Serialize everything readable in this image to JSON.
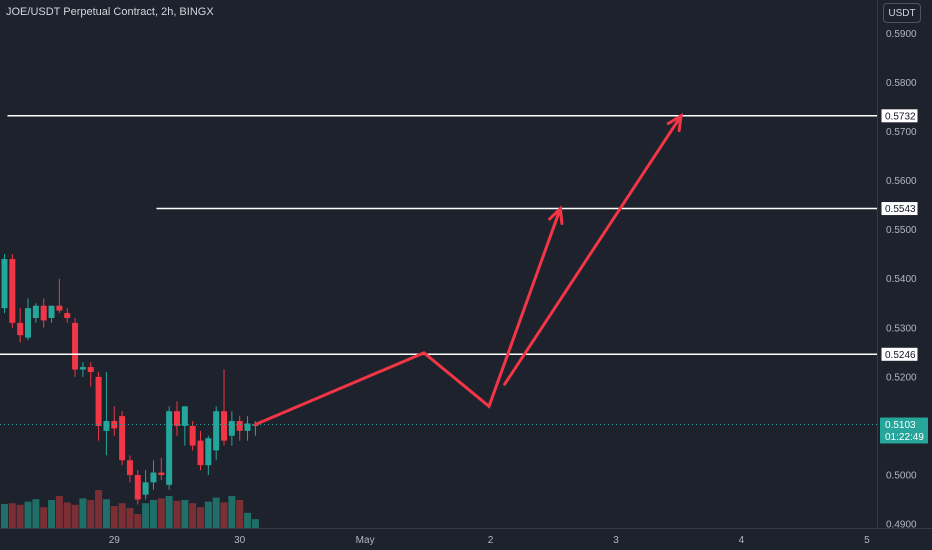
{
  "header": {
    "title": "JOE/USDT Perpetual Contract, 2h, BINGX",
    "currency": "USDT"
  },
  "chart_data": {
    "type": "candlestick",
    "title": "JOE/USDT Perpetual Contract, 2h, BINGX",
    "xlabel": "",
    "ylabel": "",
    "ylim": [
      0.4892,
      0.5968
    ],
    "grid": false,
    "y_ticks": [
      {
        "label": "0.5900",
        "value": 0.59
      },
      {
        "label": "0.5800",
        "value": 0.58
      },
      {
        "label": "0.5700",
        "value": 0.57
      },
      {
        "label": "0.5600",
        "value": 0.56
      },
      {
        "label": "0.5500",
        "value": 0.55
      },
      {
        "label": "0.5400",
        "value": 0.54
      },
      {
        "label": "0.5300",
        "value": 0.53
      },
      {
        "label": "0.5200",
        "value": 0.52
      },
      {
        "label": "0.5000",
        "value": 0.5
      },
      {
        "label": "0.4900",
        "value": 0.49
      }
    ],
    "x_ticks": [
      {
        "label": "29",
        "bar": 14
      },
      {
        "label": "30",
        "bar": 30
      },
      {
        "label": "May",
        "bar": 46
      },
      {
        "label": "2",
        "bar": 62
      },
      {
        "label": "3",
        "bar": 78
      },
      {
        "label": "4",
        "bar": 94
      },
      {
        "label": "5",
        "bar": 110
      }
    ],
    "candles": [
      {
        "o": 0.534,
        "h": 0.545,
        "l": 0.533,
        "c": 0.544
      },
      {
        "o": 0.544,
        "h": 0.545,
        "l": 0.53,
        "c": 0.531
      },
      {
        "o": 0.531,
        "h": 0.534,
        "l": 0.527,
        "c": 0.5285
      },
      {
        "o": 0.528,
        "h": 0.536,
        "l": 0.5275,
        "c": 0.534
      },
      {
        "o": 0.532,
        "h": 0.535,
        "l": 0.531,
        "c": 0.5345
      },
      {
        "o": 0.5345,
        "h": 0.536,
        "l": 0.53,
        "c": 0.5315
      },
      {
        "o": 0.532,
        "h": 0.5345,
        "l": 0.531,
        "c": 0.5345
      },
      {
        "o": 0.5345,
        "h": 0.54,
        "l": 0.533,
        "c": 0.5335
      },
      {
        "o": 0.533,
        "h": 0.534,
        "l": 0.531,
        "c": 0.532
      },
      {
        "o": 0.531,
        "h": 0.532,
        "l": 0.52,
        "c": 0.5215
      },
      {
        "o": 0.5215,
        "h": 0.523,
        "l": 0.52,
        "c": 0.522
      },
      {
        "o": 0.522,
        "h": 0.523,
        "l": 0.518,
        "c": 0.521
      },
      {
        "o": 0.52,
        "h": 0.521,
        "l": 0.507,
        "c": 0.51
      },
      {
        "o": 0.509,
        "h": 0.521,
        "l": 0.504,
        "c": 0.511
      },
      {
        "o": 0.511,
        "h": 0.514,
        "l": 0.508,
        "c": 0.5095
      },
      {
        "o": 0.512,
        "h": 0.513,
        "l": 0.502,
        "c": 0.503
      },
      {
        "o": 0.503,
        "h": 0.504,
        "l": 0.4985,
        "c": 0.5
      },
      {
        "o": 0.5,
        "h": 0.501,
        "l": 0.494,
        "c": 0.495
      },
      {
        "o": 0.496,
        "h": 0.501,
        "l": 0.495,
        "c": 0.4985
      },
      {
        "o": 0.4985,
        "h": 0.503,
        "l": 0.497,
        "c": 0.5005
      },
      {
        "o": 0.5005,
        "h": 0.5035,
        "l": 0.499,
        "c": 0.5
      },
      {
        "o": 0.498,
        "h": 0.514,
        "l": 0.497,
        "c": 0.513
      },
      {
        "o": 0.513,
        "h": 0.515,
        "l": 0.508,
        "c": 0.51
      },
      {
        "o": 0.51,
        "h": 0.514,
        "l": 0.506,
        "c": 0.514
      },
      {
        "o": 0.51,
        "h": 0.511,
        "l": 0.505,
        "c": 0.506
      },
      {
        "o": 0.507,
        "h": 0.509,
        "l": 0.501,
        "c": 0.502
      },
      {
        "o": 0.502,
        "h": 0.508,
        "l": 0.5,
        "c": 0.5075
      },
      {
        "o": 0.505,
        "h": 0.514,
        "l": 0.503,
        "c": 0.513
      },
      {
        "o": 0.513,
        "h": 0.5215,
        "l": 0.506,
        "c": 0.507
      },
      {
        "o": 0.508,
        "h": 0.513,
        "l": 0.506,
        "c": 0.511
      },
      {
        "o": 0.511,
        "h": 0.512,
        "l": 0.507,
        "c": 0.509
      },
      {
        "o": 0.509,
        "h": 0.512,
        "l": 0.507,
        "c": 0.5105
      },
      {
        "o": 0.51,
        "h": 0.511,
        "l": 0.508,
        "c": 0.5103
      }
    ],
    "volume": [
      0.6,
      0.62,
      0.58,
      0.66,
      0.72,
      0.52,
      0.7,
      0.8,
      0.64,
      0.58,
      0.74,
      0.7,
      0.95,
      0.72,
      0.55,
      0.62,
      0.5,
      0.35,
      0.62,
      0.7,
      0.74,
      0.8,
      0.68,
      0.7,
      0.62,
      0.52,
      0.66,
      0.76,
      0.64,
      0.8,
      0.7,
      0.38,
      0.22
    ],
    "horizontal_levels": [
      {
        "label": "0.5732",
        "value": 0.5732,
        "from_bar": 0
      },
      {
        "label": "0.5543",
        "value": 0.5543,
        "from_bar": 19
      },
      {
        "label": "0.5246",
        "value": 0.5246,
        "from_bar": -1
      }
    ],
    "projection_path": [
      {
        "bar": 32,
        "value": 0.5103
      },
      {
        "bar": 53.5,
        "value": 0.5249
      },
      {
        "bar": 61.8,
        "value": 0.514
      },
      {
        "bar": 70.9,
        "value": 0.5543
      },
      {
        "bar": 86.3,
        "value": 0.5732
      }
    ],
    "projection_branch_from": {
      "bar": 63.8,
      "value": 0.5185
    },
    "last_price": {
      "label": "0.5103",
      "value": 0.5103,
      "countdown": "01:22:49"
    },
    "colors": {
      "background": "#1e222d",
      "up": "#26a69a",
      "down": "#f23645",
      "volume_up": "#1f6e68",
      "volume_down": "#7a2f35",
      "arrow": "#f23645",
      "level_line": "#ffffff",
      "axis_text": "#b2b5be"
    }
  }
}
